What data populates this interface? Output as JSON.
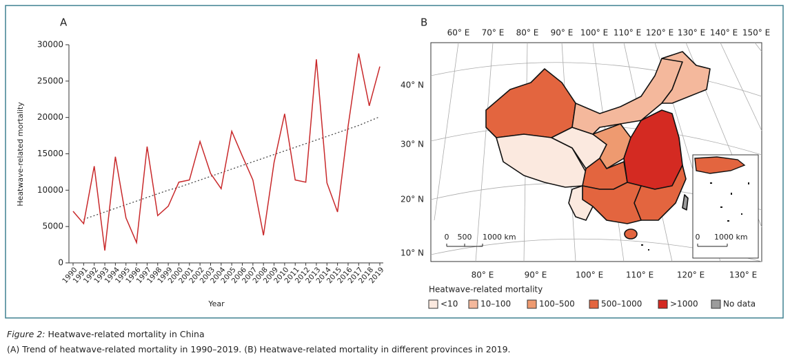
{
  "chart_data": {
    "type": "line",
    "panel": "A",
    "x_label": "Year",
    "y_label": "Heatwave-related mortality",
    "categories": [
      "1990",
      "1991",
      "1992",
      "1993",
      "1994",
      "1995",
      "1996",
      "1997",
      "1998",
      "1999",
      "2000",
      "2001",
      "2002",
      "2003",
      "2004",
      "2005",
      "2006",
      "2007",
      "2008",
      "2009",
      "2010",
      "2011",
      "2012",
      "2013",
      "2014",
      "2015",
      "2016",
      "2017",
      "2018",
      "2019"
    ],
    "values": [
      7100,
      5400,
      13300,
      1700,
      14600,
      6200,
      2800,
      16000,
      6500,
      7800,
      11100,
      11400,
      16700,
      12300,
      10200,
      18100,
      14700,
      11400,
      3800,
      13800,
      20500,
      11400,
      11100,
      28000,
      11000,
      7000,
      18800,
      28800,
      21600,
      27000
    ],
    "color": "#c8282a",
    "trend": [
      null,
      6000,
      6500,
      7000,
      7500,
      8000,
      8500,
      9000,
      9500,
      10000,
      10400,
      10900,
      11400,
      11900,
      12400,
      12900,
      13400,
      13900,
      14400,
      14900,
      15400,
      15900,
      16400,
      16900,
      17400,
      17900,
      18400,
      18900,
      19500,
      20100
    ],
    "trend_color": "#444444",
    "ylim": [
      0,
      30000
    ],
    "yticks": [
      0,
      5000,
      10000,
      15000,
      20000,
      25000,
      30000
    ]
  },
  "map": {
    "panel": "B",
    "top_labels": [
      "60° E",
      "70° E",
      "80° E",
      "90° E",
      "100° E",
      "110° E",
      "120° E",
      "130° E",
      "140° E",
      "150° E"
    ],
    "bottom_labels": [
      "80° E",
      "90° E",
      "100° E",
      "110° E",
      "120° E",
      "130° E"
    ],
    "left_labels": [
      "40° N",
      "30° N",
      "20° N",
      "10° N"
    ],
    "scale_labels": [
      "0",
      "500",
      "1000 km"
    ],
    "inset_scale_labels": [
      "0",
      "1000 km"
    ],
    "legend_title": "Heatwave-related mortality",
    "legend": [
      {
        "label": "<10",
        "color": "#fbe9df"
      },
      {
        "label": "10–100",
        "color": "#f4b89c"
      },
      {
        "label": "100–500",
        "color": "#ee9a70"
      },
      {
        "label": "500–1000",
        "color": "#e3653f"
      },
      {
        "label": ">1000",
        "color": "#d42a22"
      },
      {
        "label": "No data",
        "color": "#9c9c9c"
      }
    ]
  },
  "caption": {
    "label": "Figure 2:",
    "title": "Heatwave-related mortality in China",
    "text": "(A) Trend of heatwave-related mortality in 1990–2019. (B) Heatwave-related mortality in different provinces in 2019."
  }
}
